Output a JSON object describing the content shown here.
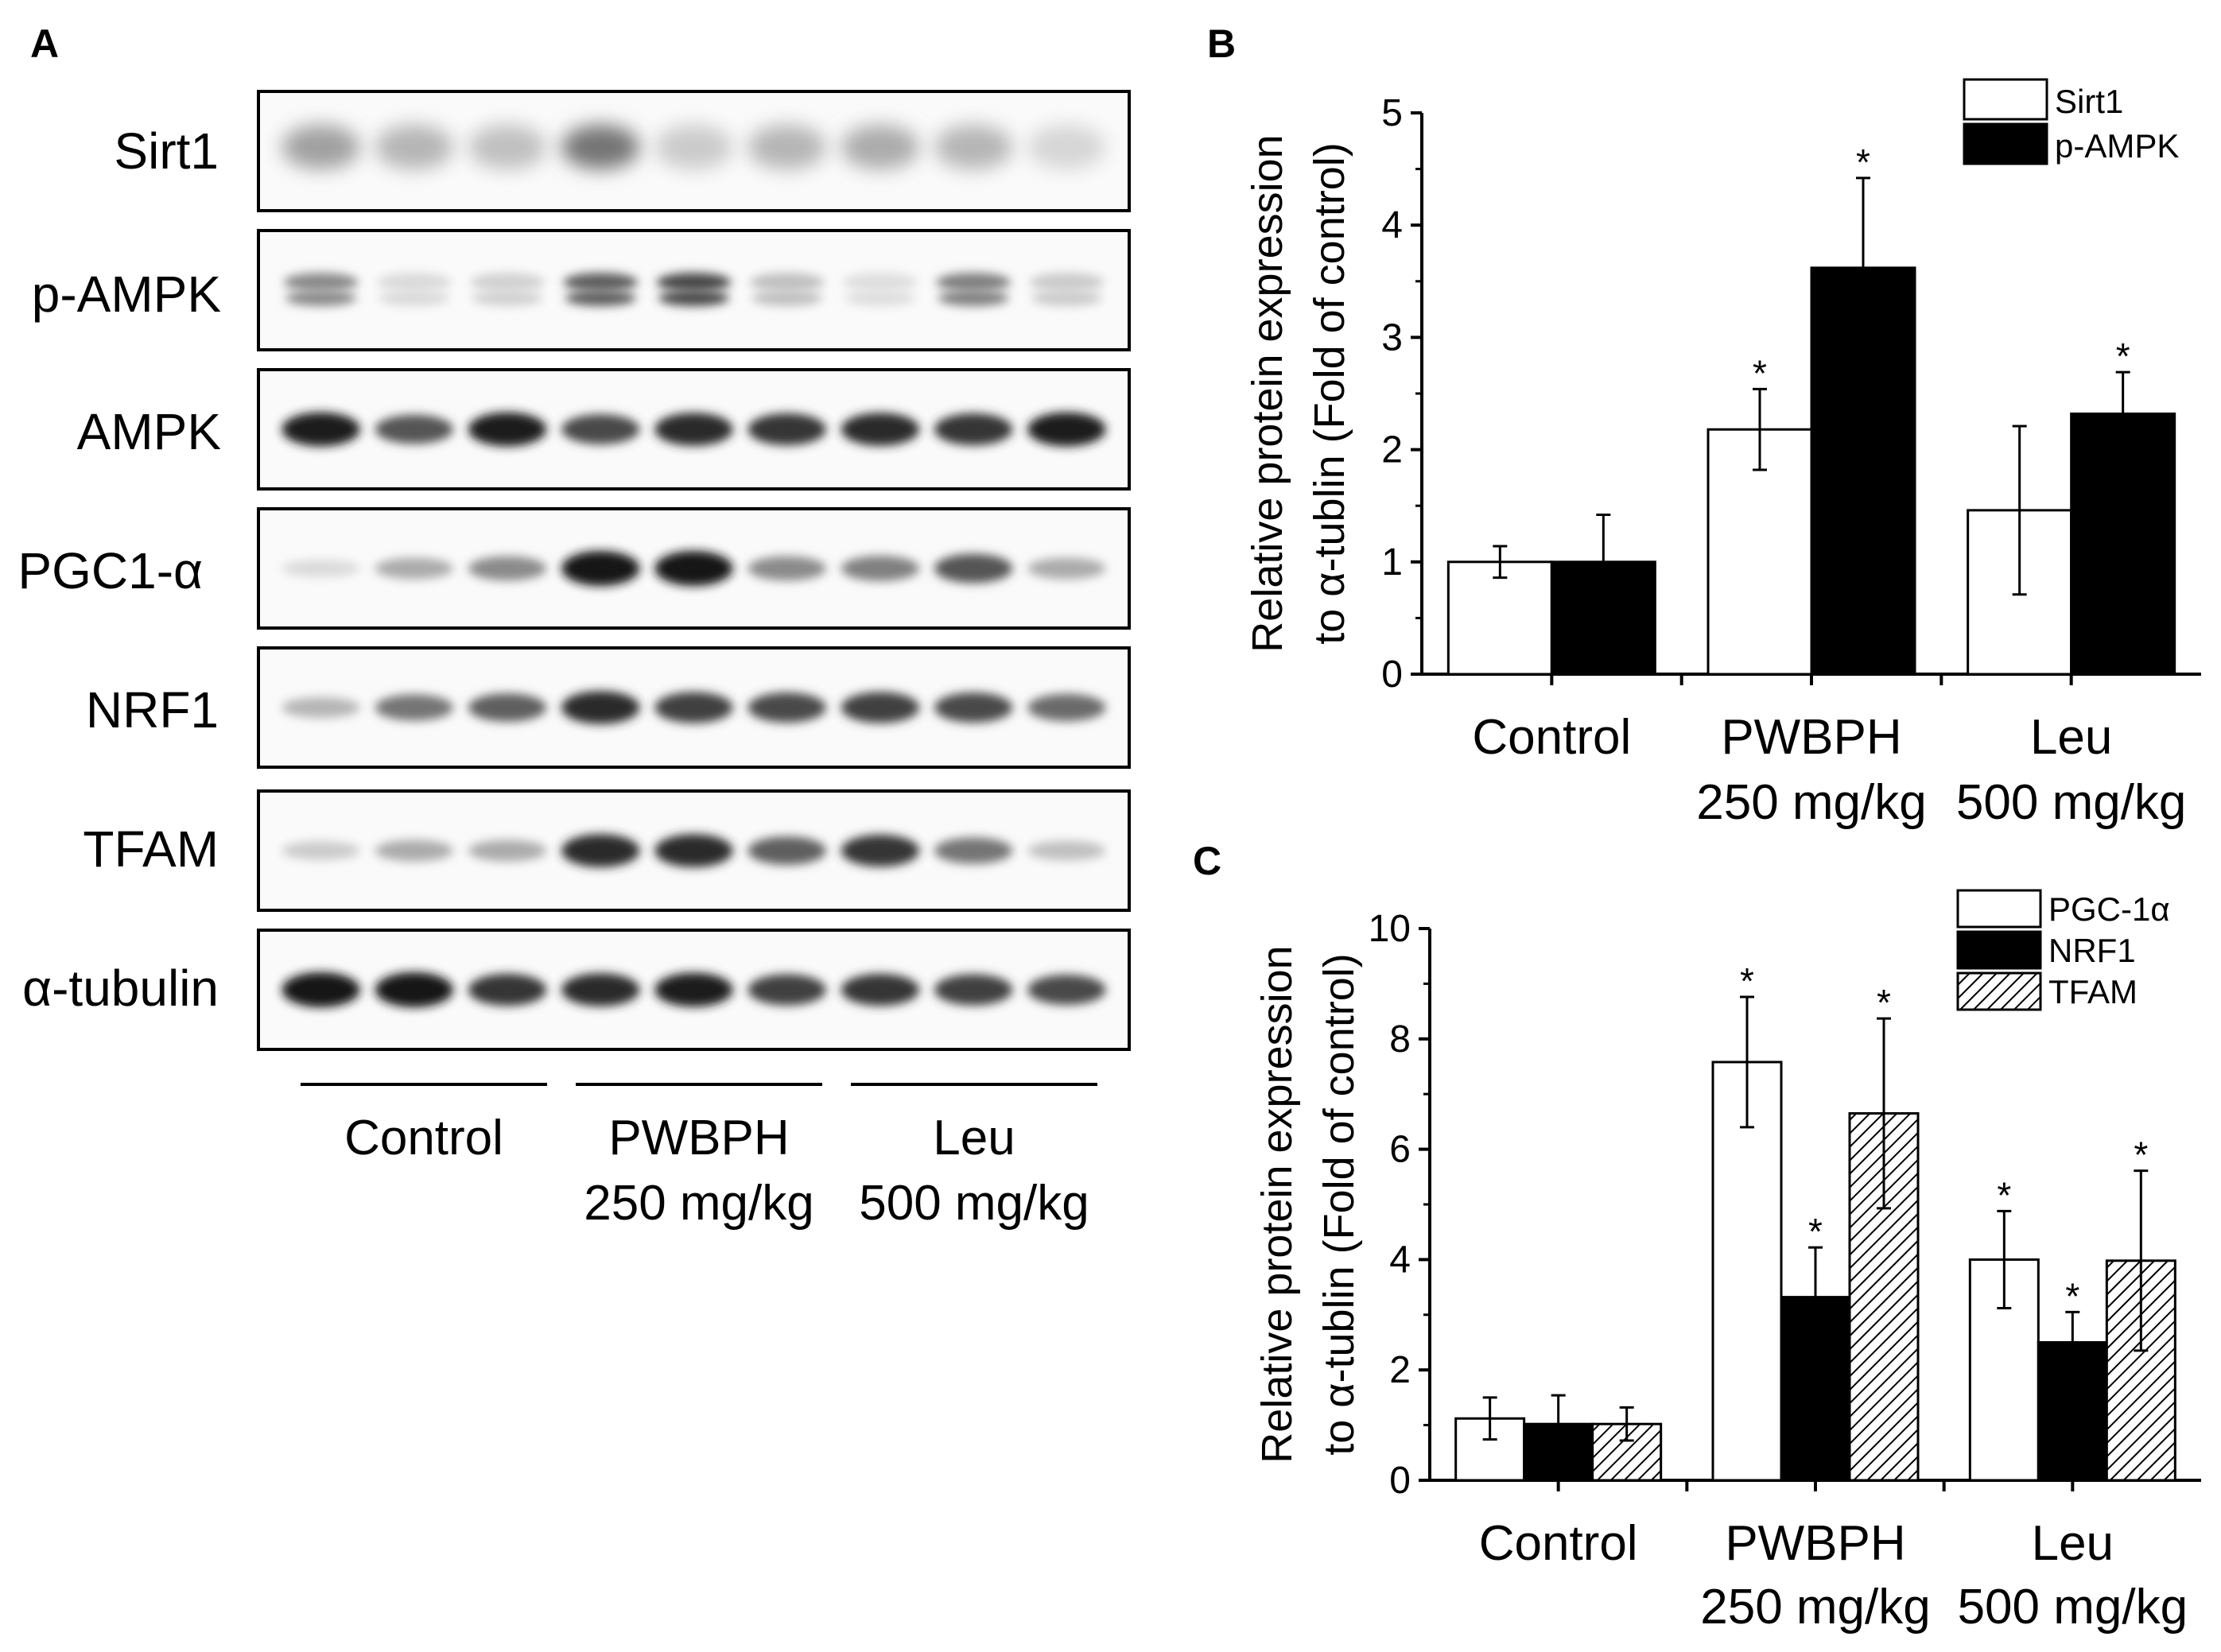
{
  "panel_a": {
    "letter": "A",
    "rows": [
      {
        "label": "Sirt1",
        "lanes": [
          0.35,
          0.25,
          0.2,
          0.55,
          0.15,
          0.25,
          0.3,
          0.25,
          0.1
        ],
        "style": "diffuse"
      },
      {
        "label": "p-AMPK",
        "lanes": [
          0.45,
          0.08,
          0.12,
          0.65,
          0.75,
          0.2,
          0.06,
          0.5,
          0.15
        ],
        "style": "doublet"
      },
      {
        "label": "AMPK",
        "lanes": [
          0.95,
          0.7,
          0.95,
          0.75,
          0.9,
          0.85,
          0.9,
          0.85,
          0.95
        ],
        "style": "band"
      },
      {
        "label": "PGC1-α",
        "lanes": [
          0.08,
          0.3,
          0.45,
          1.0,
          1.0,
          0.45,
          0.5,
          0.7,
          0.3
        ],
        "style": "band"
      },
      {
        "label": "NRF1",
        "lanes": [
          0.25,
          0.55,
          0.65,
          0.9,
          0.8,
          0.75,
          0.8,
          0.75,
          0.6
        ],
        "style": "band"
      },
      {
        "label": "TFAM",
        "lanes": [
          0.15,
          0.3,
          0.3,
          0.9,
          0.9,
          0.65,
          0.85,
          0.55,
          0.2
        ],
        "style": "band"
      },
      {
        "label": "α-tubulin",
        "lanes": [
          1.0,
          1.0,
          0.85,
          0.9,
          0.95,
          0.8,
          0.85,
          0.8,
          0.75
        ],
        "style": "band"
      }
    ],
    "groups": [
      {
        "line1": "Control",
        "line2": ""
      },
      {
        "line1": "PWBPH",
        "line2": "250 mg/kg"
      },
      {
        "line1": "Leu",
        "line2": "500 mg/kg"
      }
    ]
  },
  "chart_data": [
    {
      "panel": "B",
      "type": "bar",
      "categories": [
        {
          "line1": "Control",
          "line2": ""
        },
        {
          "line1": "PWBPH",
          "line2": "250 mg/kg"
        },
        {
          "line1": "Leu",
          "line2": "500 mg/kg"
        }
      ],
      "ylabel_line1": "Relative protein expression",
      "ylabel_line2": "to α-tublin (Fold of control)",
      "ylim": [
        0,
        5
      ],
      "yticks": [
        "0",
        "1",
        "2",
        "3",
        "4",
        "5"
      ],
      "legend_position": "top-right",
      "series": [
        {
          "name": "Sirt1",
          "fill": "white",
          "values": [
            1.0,
            2.18,
            1.46
          ],
          "errors": [
            0.14,
            0.36,
            0.75
          ],
          "significant": [
            false,
            true,
            false
          ]
        },
        {
          "name": "p-AMPK",
          "fill": "black",
          "values": [
            1.0,
            3.62,
            2.32
          ],
          "errors": [
            0.42,
            0.8,
            0.37
          ],
          "significant": [
            false,
            true,
            true
          ]
        }
      ],
      "marker": "*"
    },
    {
      "panel": "C",
      "type": "bar",
      "categories": [
        {
          "line1": "Control",
          "line2": ""
        },
        {
          "line1": "PWBPH",
          "line2": "250 mg/kg"
        },
        {
          "line1": "Leu",
          "line2": "500 mg/kg"
        }
      ],
      "ylabel_line1": "Relative protein expression",
      "ylabel_line2": "to α-tublin (Fold of control)",
      "ylim": [
        0,
        10
      ],
      "yticks": [
        "0",
        "2",
        "4",
        "6",
        "8",
        "10"
      ],
      "legend_position": "top-right",
      "series": [
        {
          "name": "PGC-1α",
          "fill": "white",
          "values": [
            1.12,
            7.58,
            4.0
          ],
          "errors": [
            0.38,
            1.18,
            0.88
          ],
          "significant": [
            false,
            true,
            true
          ]
        },
        {
          "name": "NRF1",
          "fill": "black",
          "values": [
            1.02,
            3.32,
            2.5
          ],
          "errors": [
            0.52,
            0.9,
            0.55
          ],
          "significant": [
            false,
            true,
            true
          ]
        },
        {
          "name": "TFAM",
          "fill": "hatch",
          "values": [
            1.02,
            6.65,
            3.98
          ],
          "errors": [
            0.3,
            1.72,
            1.63
          ],
          "significant": [
            false,
            true,
            true
          ]
        }
      ],
      "marker": "*"
    }
  ]
}
